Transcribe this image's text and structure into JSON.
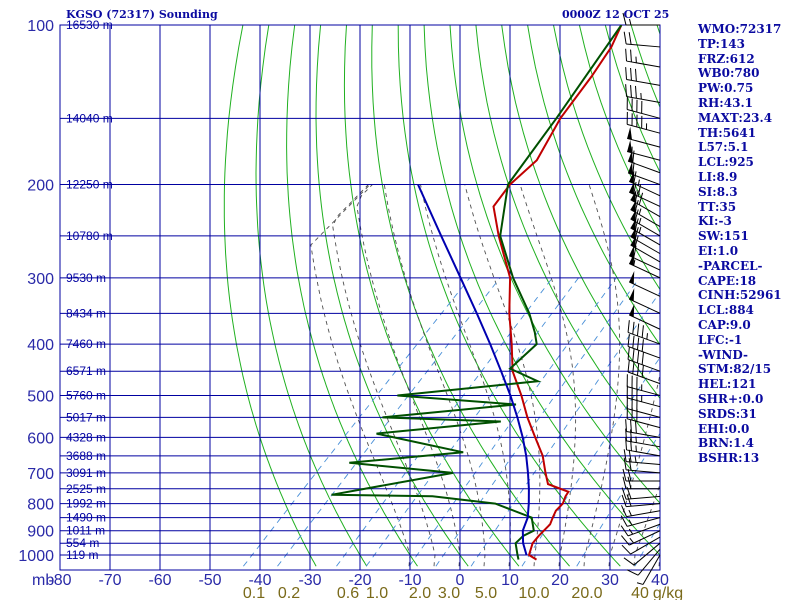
{
  "header": {
    "station": "KGSO (72317) Sounding",
    "time": "0000Z 12 OCT 25"
  },
  "sidebar": [
    "WMO:72317",
    "TP:143",
    "FRZ:612",
    "WB0:780",
    "PW:0.75",
    "RH:43.1",
    "MAXT:23.4",
    "TH:5641",
    "L57:5.1",
    "LCL:925",
    "LI:8.9",
    "SI:8.3",
    "TT:35",
    "KI:-3",
    "SW:151",
    "EI:1.0",
    "-PARCEL-",
    "CAPE:18",
    "CINH:52961",
    "LCL:884",
    "CAP:9.0",
    "LFC:-1",
    "-WIND-",
    "STM:82/15",
    "HEL:121",
    "SHR+:0.0",
    "SRDS:31",
    "EHI:0.0",
    "BRN:1.4",
    "BSHR:13"
  ],
  "colors": {
    "grid": "#0000a0",
    "dry_adiabat": "#20b020",
    "moist_adiabat": "#505050",
    "mixing_ratio": "#4a90d8",
    "temperature": "#c00000",
    "dewpoint": "#005000",
    "parcel": "#0000b0",
    "axis_text": "#2a2aa8",
    "mixing_label": "#7a6a1a"
  },
  "chart_data": {
    "type": "line",
    "title": "KGSO (72317) Sounding",
    "pressure_unit": "mb",
    "pressure_levels": [
      100,
      200,
      300,
      400,
      500,
      600,
      700,
      800,
      900,
      1000
    ],
    "pressure_range": [
      100,
      1050
    ],
    "temperature_ticks": [
      -80,
      -70,
      -60,
      -50,
      -40,
      -30,
      -20,
      -10,
      0,
      10,
      20,
      30,
      40
    ],
    "temperature_range": [
      -80,
      40
    ],
    "height_labels": [
      {
        "p": 100,
        "label": "16530 m"
      },
      {
        "p": 150,
        "label": "14040 m"
      },
      {
        "p": 200,
        "label": "12250 m"
      },
      {
        "p": 250,
        "label": "10780 m"
      },
      {
        "p": 300,
        "label": "9530 m"
      },
      {
        "p": 350,
        "label": "8434 m"
      },
      {
        "p": 400,
        "label": "7460 m"
      },
      {
        "p": 450,
        "label": "6571 m"
      },
      {
        "p": 500,
        "label": "5760 m"
      },
      {
        "p": 550,
        "label": "5017 m"
      },
      {
        "p": 600,
        "label": "4328 m"
      },
      {
        "p": 650,
        "label": "3688 m"
      },
      {
        "p": 700,
        "label": "3091 m"
      },
      {
        "p": 750,
        "label": "2525 m"
      },
      {
        "p": 800,
        "label": "1992 m"
      },
      {
        "p": 850,
        "label": "1490 m"
      },
      {
        "p": 900,
        "label": "1011 m"
      },
      {
        "p": 950,
        "label": "554 m"
      },
      {
        "p": 1000,
        "label": "119 m"
      }
    ],
    "mixing_ratio_labels": [
      "0.1",
      "0.2",
      "0.6",
      "1.0",
      "2.0",
      "3.0",
      "5.0",
      "10.0",
      "20.0",
      "40",
      "g/kg"
    ],
    "mixing_ratio_values": [
      0.1,
      0.2,
      0.6,
      1.0,
      2.0,
      3.0,
      5.0,
      10.0,
      20.0,
      40.0
    ],
    "series": [
      {
        "name": "Temperature",
        "points": [
          [
            1020,
            16.2
          ],
          [
            1000,
            13.8
          ],
          [
            950,
            12.2
          ],
          [
            920,
            12.0
          ],
          [
            900,
            12.0
          ],
          [
            875,
            12.0
          ],
          [
            850,
            11.2
          ],
          [
            825,
            10.5
          ],
          [
            800,
            10.5
          ],
          [
            775,
            9.6
          ],
          [
            760,
            9.3
          ],
          [
            735,
            3.7
          ],
          [
            700,
            1.0
          ],
          [
            650,
            -2.9
          ],
          [
            600,
            -8.0
          ],
          [
            550,
            -13.5
          ],
          [
            500,
            -19.0
          ],
          [
            450,
            -25.5
          ],
          [
            400,
            -31.0
          ],
          [
            350,
            -37.5
          ],
          [
            300,
            -44.3
          ],
          [
            250,
            -54.8
          ],
          [
            220,
            -61.6
          ],
          [
            200,
            -62.6
          ],
          [
            180,
            -62.0
          ],
          [
            150,
            -65.5
          ],
          [
            125,
            -67.5
          ],
          [
            110,
            -69.3
          ],
          [
            100,
            -71.6
          ]
        ]
      },
      {
        "name": "Dewpoint",
        "points": [
          [
            1020,
            12.6
          ],
          [
            1000,
            11.5
          ],
          [
            950,
            8.8
          ],
          [
            920,
            8.9
          ],
          [
            900,
            10.0
          ],
          [
            850,
            7.0
          ],
          [
            800,
            -3.0
          ],
          [
            775,
            -17.0
          ],
          [
            770,
            -37.5
          ],
          [
            700,
            -17.5
          ],
          [
            670,
            -40.2
          ],
          [
            640,
            -19.5
          ],
          [
            590,
            -40.5
          ],
          [
            560,
            -18.0
          ],
          [
            550,
            -42.5
          ],
          [
            520,
            -18.3
          ],
          [
            500,
            -43.8
          ],
          [
            470,
            -18.5
          ],
          [
            445,
            -26.5
          ],
          [
            400,
            -26.0
          ],
          [
            380,
            -28.7
          ],
          [
            350,
            -33.5
          ],
          [
            300,
            -43.7
          ],
          [
            250,
            -54.5
          ],
          [
            200,
            -63.0
          ],
          [
            150,
            -66.3
          ],
          [
            100,
            -71.6
          ]
        ]
      },
      {
        "name": "Parcel",
        "points": [
          [
            1000,
            13.3
          ],
          [
            950,
            10.3
          ],
          [
            900,
            7.8
          ],
          [
            850,
            6.2
          ],
          [
            800,
            3.7
          ],
          [
            750,
            0.8
          ],
          [
            700,
            -2.5
          ],
          [
            650,
            -6.2
          ],
          [
            600,
            -10.5
          ],
          [
            550,
            -15.5
          ],
          [
            500,
            -21.2
          ],
          [
            450,
            -27.8
          ],
          [
            400,
            -35.3
          ],
          [
            350,
            -44.0
          ],
          [
            300,
            -54.2
          ],
          [
            250,
            -66.3
          ],
          [
            200,
            -81.0
          ]
        ]
      }
    ],
    "wind_barbs": [
      [
        1000,
        210,
        6
      ],
      [
        975,
        220,
        8
      ],
      [
        950,
        230,
        10
      ],
      [
        925,
        240,
        12
      ],
      [
        900,
        245,
        14
      ],
      [
        875,
        250,
        15
      ],
      [
        850,
        255,
        16
      ],
      [
        825,
        260,
        17
      ],
      [
        800,
        265,
        18
      ],
      [
        775,
        265,
        20
      ],
      [
        750,
        270,
        20
      ],
      [
        725,
        270,
        20
      ],
      [
        700,
        275,
        22
      ],
      [
        675,
        275,
        24
      ],
      [
        650,
        280,
        25
      ],
      [
        625,
        280,
        26
      ],
      [
        600,
        280,
        28
      ],
      [
        575,
        285,
        30
      ],
      [
        550,
        285,
        32
      ],
      [
        525,
        285,
        34
      ],
      [
        500,
        285,
        35
      ],
      [
        475,
        290,
        38
      ],
      [
        450,
        290,
        40
      ],
      [
        425,
        290,
        42
      ],
      [
        400,
        290,
        45
      ],
      [
        375,
        295,
        48
      ],
      [
        350,
        295,
        50
      ],
      [
        325,
        295,
        52
      ],
      [
        300,
        295,
        55
      ],
      [
        290,
        295,
        58
      ],
      [
        280,
        300,
        60
      ],
      [
        270,
        300,
        62
      ],
      [
        260,
        300,
        63
      ],
      [
        250,
        300,
        65
      ],
      [
        240,
        300,
        67
      ],
      [
        230,
        300,
        68
      ],
      [
        220,
        295,
        68
      ],
      [
        210,
        295,
        66
      ],
      [
        200,
        290,
        62
      ],
      [
        190,
        290,
        58
      ],
      [
        180,
        285,
        55
      ],
      [
        170,
        285,
        50
      ],
      [
        160,
        285,
        45
      ],
      [
        150,
        285,
        40
      ],
      [
        140,
        280,
        35
      ],
      [
        130,
        280,
        30
      ],
      [
        120,
        280,
        25
      ],
      [
        110,
        275,
        20
      ],
      [
        100,
        270,
        15
      ]
    ]
  }
}
